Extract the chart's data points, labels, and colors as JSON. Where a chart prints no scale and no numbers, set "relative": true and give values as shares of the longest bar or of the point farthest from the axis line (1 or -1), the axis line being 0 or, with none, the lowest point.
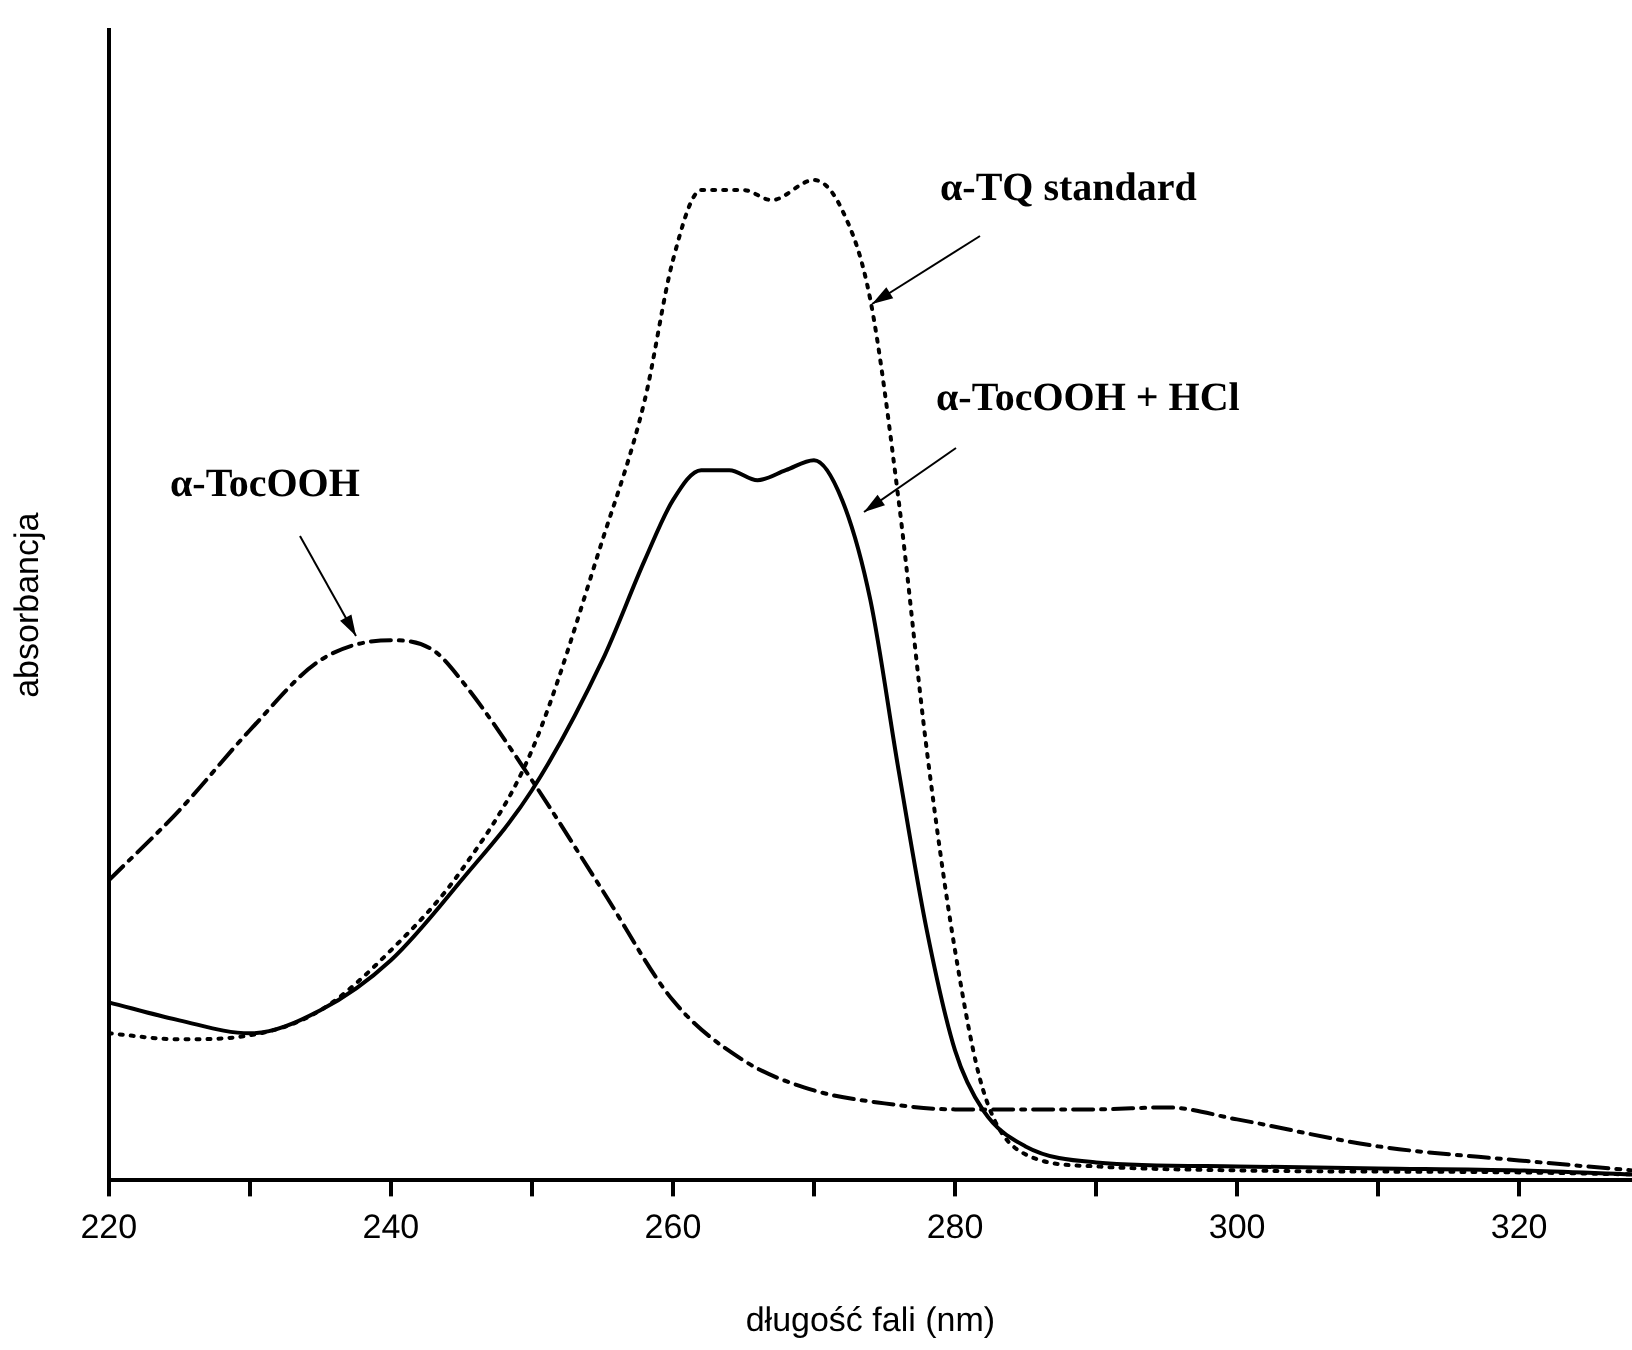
{
  "chart_data": {
    "type": "line",
    "relative": true,
    "xlabel": "długość fali (nm)",
    "ylabel": "absorbancja",
    "legend": false,
    "grid": false,
    "marker": "none",
    "xlim": [
      220,
      328
    ],
    "xticks": [
      220,
      {
        "value": 230,
        "label": null
      },
      240,
      {
        "value": 250,
        "label": null
      },
      260,
      {
        "value": 270,
        "label": null
      },
      280,
      {
        "value": 290,
        "label": null
      },
      300,
      {
        "value": 310,
        "label": null
      },
      320
    ],
    "series": [
      {
        "name": "α-TocOOH",
        "color": "#000000",
        "line_style": "dashed",
        "x": [
          220,
          225,
          230,
          235,
          240,
          243,
          245,
          250,
          255,
          260,
          265,
          270,
          275,
          280,
          290,
          295,
          300,
          310,
          320,
          328
        ],
        "values": [
          0.3,
          0.37,
          0.45,
          0.52,
          0.54,
          0.53,
          0.5,
          0.4,
          0.29,
          0.18,
          0.12,
          0.09,
          0.077,
          0.071,
          0.071,
          0.073,
          0.061,
          0.034,
          0.02,
          0.01
        ]
      },
      {
        "name": "α-TQ standard",
        "color": "#000000",
        "line_style": "dotted",
        "x": [
          220,
          225,
          230,
          235,
          240,
          245,
          250,
          255,
          258,
          260,
          262,
          265,
          267,
          270,
          272,
          274,
          276,
          278,
          280,
          282,
          285,
          290,
          300,
          320,
          328
        ],
        "values": [
          0.147,
          0.141,
          0.145,
          0.17,
          0.23,
          0.31,
          0.43,
          0.64,
          0.78,
          0.92,
          0.99,
          0.99,
          0.98,
          1.0,
          0.97,
          0.88,
          0.68,
          0.43,
          0.23,
          0.09,
          0.026,
          0.014,
          0.01,
          0.008,
          0.006
        ]
      },
      {
        "name": "α-TocOOH + HCl",
        "color": "#000000",
        "line_style": "solid",
        "x": [
          220,
          225,
          230,
          235,
          240,
          245,
          250,
          255,
          258,
          260,
          262,
          264,
          266,
          268,
          270,
          272,
          274,
          276,
          278,
          280,
          282,
          285,
          290,
          300,
          310,
          320,
          328
        ],
        "values": [
          0.178,
          0.16,
          0.147,
          0.17,
          0.22,
          0.3,
          0.39,
          0.52,
          0.62,
          0.68,
          0.71,
          0.71,
          0.7,
          0.71,
          0.72,
          0.68,
          0.58,
          0.41,
          0.25,
          0.13,
          0.07,
          0.034,
          0.018,
          0.014,
          0.012,
          0.01,
          0.006
        ]
      }
    ]
  }
}
